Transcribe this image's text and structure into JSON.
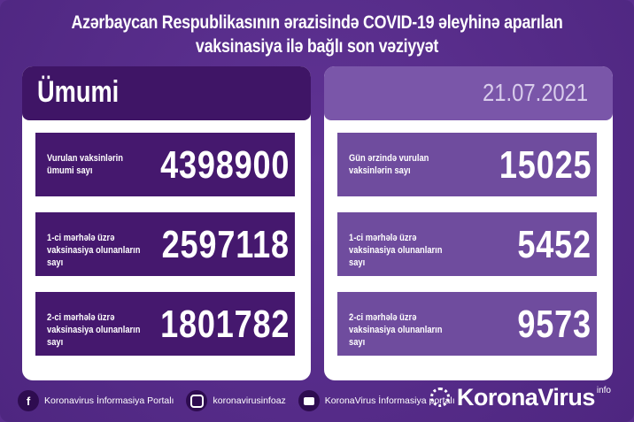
{
  "title": {
    "line1": "Azərbaycan Respublikasının ərazisində COVID-19 əleyhinə aparılan",
    "line2": "vaksinasiya ilə bağlı son vəziyyət"
  },
  "colors": {
    "background": "#5a2e8e",
    "left_box": "#45186e",
    "right_box": "#6f4c9e",
    "card": "#ffffff"
  },
  "total": {
    "heading": "Ümumi",
    "items": [
      {
        "label": "Vurulan vaksinlərin ümumi sayı",
        "value": "4398900"
      },
      {
        "label": "1-ci mərhələ üzrə vaksinasiya olunanların sayı",
        "value": "2597118"
      },
      {
        "label": "2-ci mərhələ üzrə vaksinasiya olunanların sayı",
        "value": "1801782"
      }
    ]
  },
  "daily": {
    "date": "21.07.2021",
    "items": [
      {
        "label": "Gün ərzində vurulan vaksinlərin sayı",
        "value": "15025"
      },
      {
        "label": "1-ci mərhələ üzrə vaksinasiya olunanların sayı",
        "value": "5452"
      },
      {
        "label": "2-ci mərhələ üzrə vaksinasiya olunanların sayı",
        "value": "9573"
      }
    ]
  },
  "footer": {
    "facebook": "Koronavirus İnformasiya Portalı",
    "instagram": "koronavirusinfoaz",
    "youtube": "KoronaVirus İnformasiya portalı",
    "icons": [
      "facebook-icon",
      "instagram-icon",
      "youtube-icon"
    ]
  },
  "brand": {
    "name": "KoronaVirus",
    "sup": "info"
  }
}
